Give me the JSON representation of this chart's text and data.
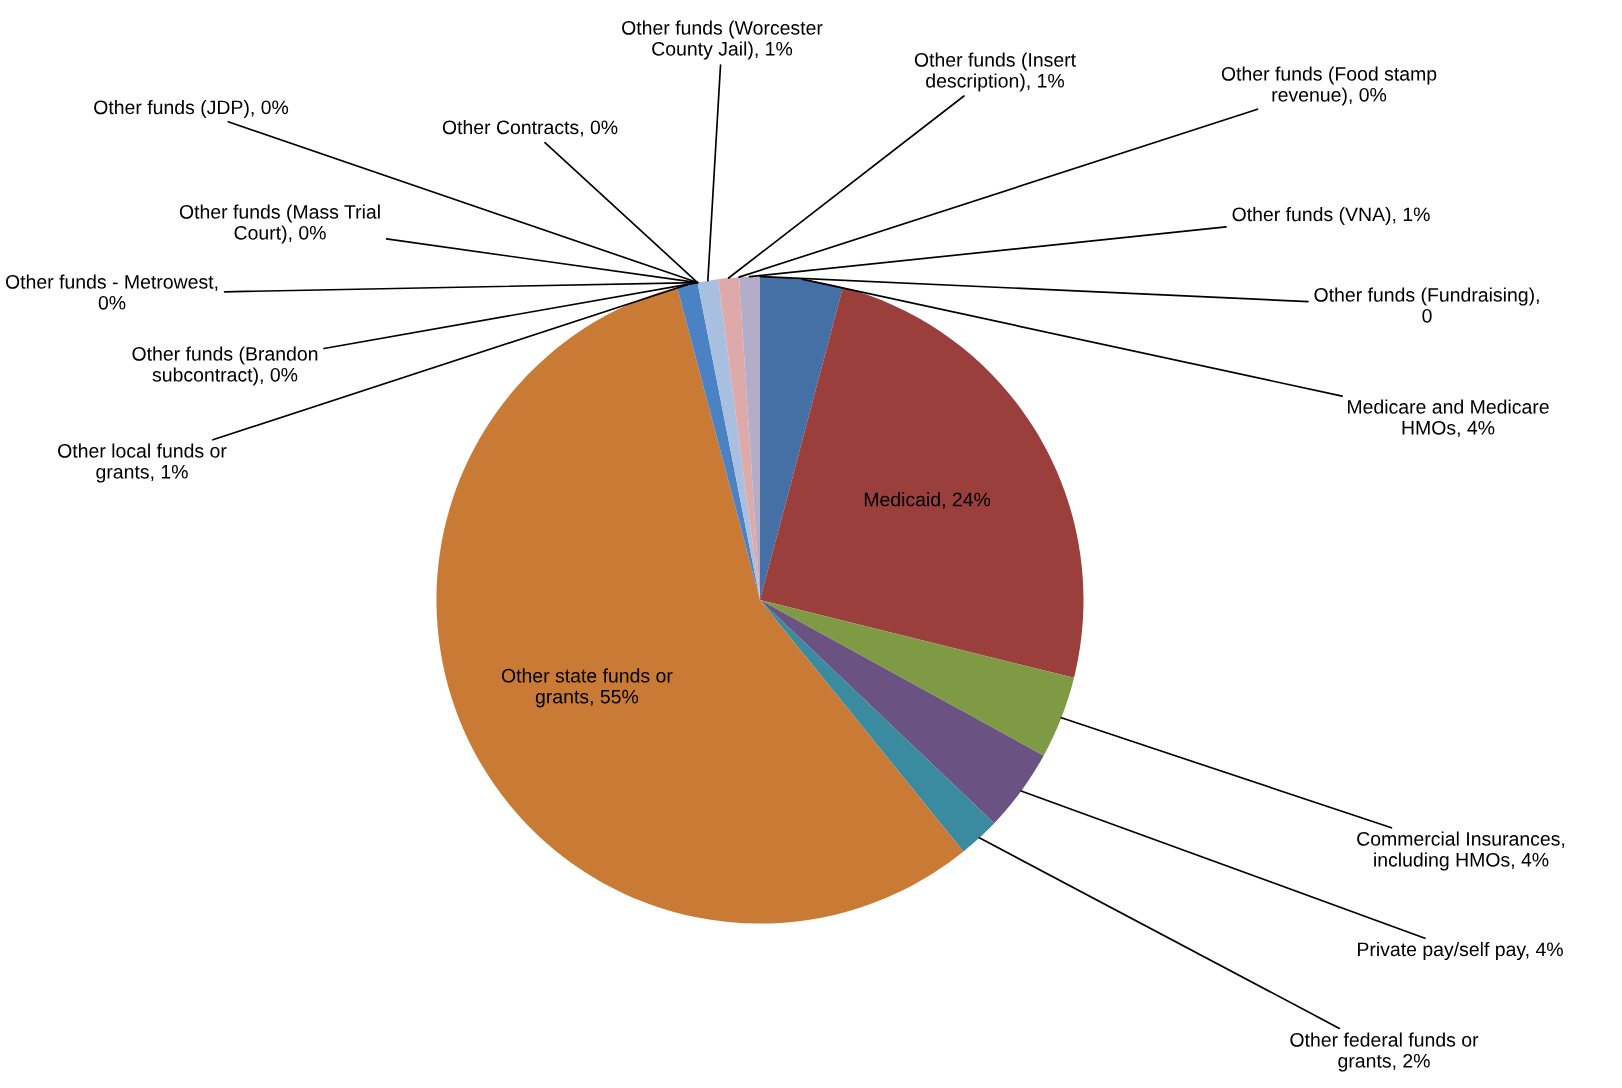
{
  "chart_data": {
    "type": "pie",
    "categories": [
      "Medicare and Medicare HMOs, 4%",
      "Medicaid, 24%",
      "Commercial Insurances, including HMOs, 4%",
      "Private pay/self pay, 4%",
      "Other federal funds or grants, 2%",
      "Other state funds or grants, 55%",
      "Other local funds or grants, 1%",
      "Other funds (Brandon subcontract), 0%",
      "Other funds - Metrowest, 0%",
      "Other funds (Mass Trial Court), 0%",
      "Other funds (JDP), 0%",
      "Other Contracts, 0%",
      "Other funds (Worcester County Jail), 1%",
      "Other funds (Insert description), 1%",
      "Other funds (Food stamp revenue), 0%",
      "Other funds (VNA), 1%",
      "Other funds (Fundraising), 0"
    ],
    "values": [
      4,
      24,
      4,
      4,
      2,
      55,
      1,
      0,
      0,
      0,
      0,
      0,
      1,
      1,
      0,
      1,
      0
    ],
    "colors": [
      "#4470a6",
      "#9b3f3d",
      "#7f9a45",
      "#6a5283",
      "#3a8aa0",
      "#c97a35",
      "#4a82c4",
      "#8fa8d0",
      "#c9a0a0",
      "#a8c090",
      "#a898c0",
      "#90c0d0",
      "#a9bfe0",
      "#dea9a9",
      "#c8d8a8",
      "#b3adc9",
      "#a8d0e0"
    ]
  }
}
